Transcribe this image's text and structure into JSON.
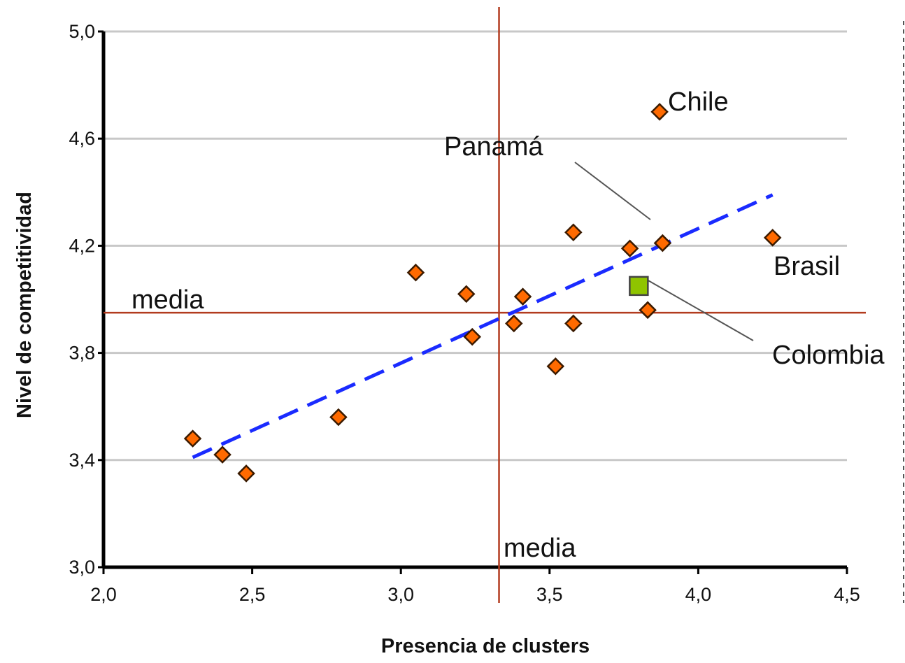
{
  "chart_data": {
    "type": "scatter",
    "title": "",
    "xlabel": "Presencia de clusters",
    "ylabel": "Nivel de competitividad",
    "xlim": [
      2.0,
      4.5
    ],
    "ylim": [
      3.0,
      5.0
    ],
    "x_ticks": [
      "2,0",
      "2,5",
      "3,0",
      "3,5",
      "4,0",
      "4,5"
    ],
    "y_ticks": [
      "3,0",
      "3,4",
      "3,8",
      "4,2",
      "4,6",
      "5,0"
    ],
    "grid": "horizontal",
    "colors": {
      "points": "#ff6a00",
      "highlight": "#8fc400",
      "trend": "#1a2bff",
      "mean_lines": "#b23b1e",
      "grid": "#c8c8c8"
    },
    "series": [
      {
        "points": [
          [
            2.3,
            3.48
          ],
          [
            2.4,
            3.42
          ],
          [
            2.48,
            3.35
          ],
          [
            2.79,
            3.56
          ],
          [
            3.05,
            4.1
          ],
          [
            3.22,
            4.02
          ],
          [
            3.24,
            3.86
          ],
          [
            3.38,
            3.91
          ],
          [
            3.41,
            4.01
          ],
          [
            3.52,
            3.75
          ],
          [
            3.58,
            4.25
          ],
          [
            3.58,
            3.91
          ],
          [
            3.77,
            4.19
          ],
          [
            3.83,
            3.96
          ],
          [
            3.87,
            4.7
          ],
          [
            3.88,
            4.21
          ],
          [
            4.25,
            4.23
          ]
        ]
      },
      {
        "points": [
          [
            3.8,
            4.05
          ]
        ]
      }
    ],
    "trendline": {
      "x": [
        2.3,
        4.25
      ],
      "y": [
        3.41,
        4.39
      ]
    },
    "mean_x": 3.33,
    "mean_y": 3.95,
    "annotations": {
      "media_horizontal": "media",
      "media_vertical": "media",
      "chile": "Chile",
      "panama": "Panamá",
      "brasil": "Brasil",
      "colombia": "Colombia"
    }
  }
}
